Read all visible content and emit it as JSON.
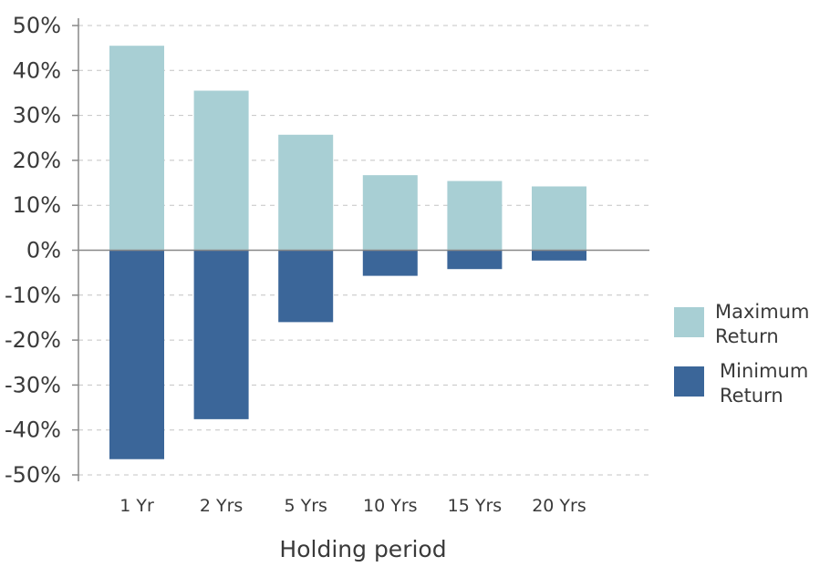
{
  "chart_data": {
    "type": "bar",
    "stacked_around_zero": true,
    "categories": [
      "1 Yr",
      "2 Yrs",
      "5 Yrs",
      "10 Yrs",
      "15 Yrs",
      "20 Yrs"
    ],
    "series": [
      {
        "name": "Maximum Return",
        "legend_lines": [
          "Maximum",
          "Return"
        ],
        "color": "#a8cfd4",
        "values": [
          45.5,
          35.5,
          25.7,
          16.7,
          15.4,
          14.2
        ]
      },
      {
        "name": "Minimum Return",
        "legend_lines": [
          "Minimum",
          "Return"
        ],
        "color": "#3b6699",
        "values": [
          -46.5,
          -37.6,
          -16.0,
          -5.7,
          -4.2,
          -2.3
        ]
      }
    ],
    "title": "",
    "xlabel": "Holding period",
    "ylabel": "",
    "ylim": [
      -50,
      50
    ],
    "yticks": [
      50,
      40,
      30,
      20,
      10,
      0,
      -10,
      -20,
      -30,
      -40,
      -50
    ],
    "ytick_labels": [
      "50%",
      "40%",
      "30%",
      "20%",
      "10%",
      "0%",
      "-10%",
      "-20%",
      "-30%",
      "-40%",
      "-50%"
    ],
    "grid": true,
    "legend_position": "right"
  }
}
